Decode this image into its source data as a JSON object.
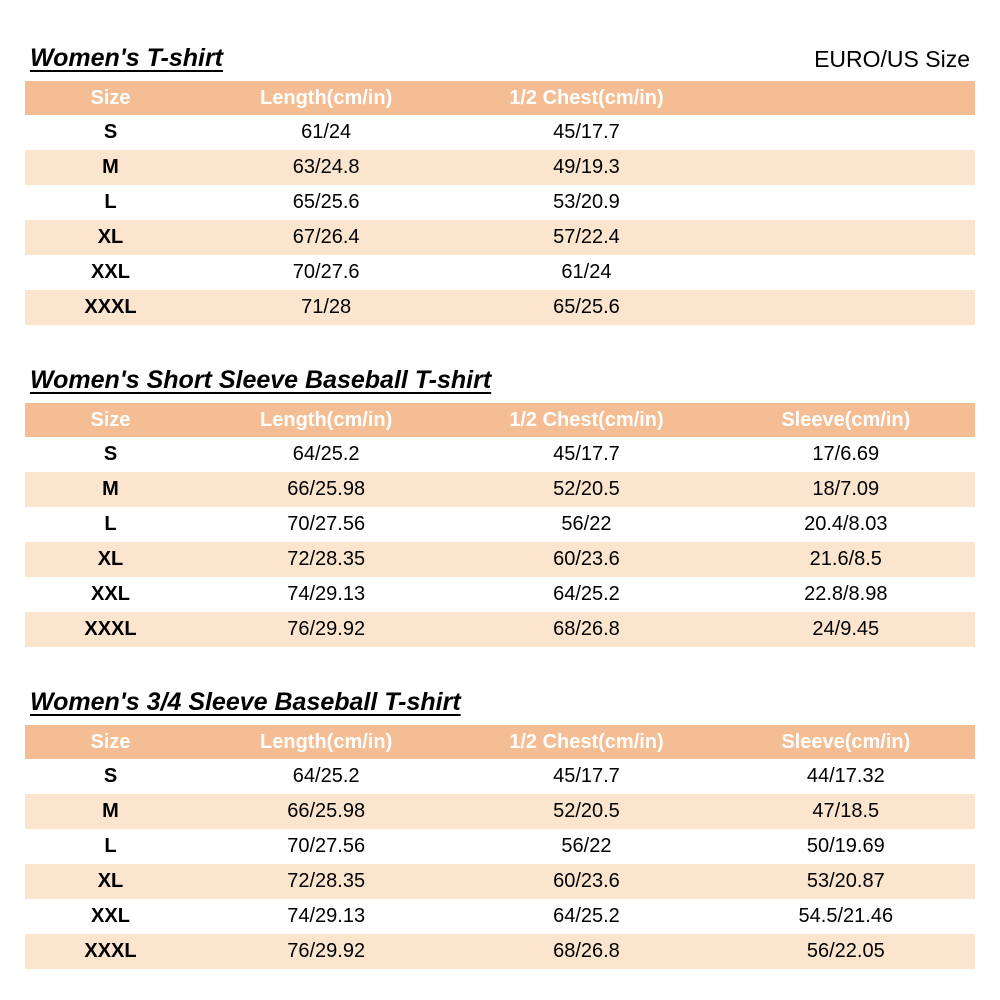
{
  "size_system_label": "EURO/US Size",
  "colors": {
    "header_bg": "#F5BD93",
    "row_alt_bg": "#FBE5CF",
    "header_text": "#FFFFFF",
    "body_text": "#000000"
  },
  "tables": [
    {
      "title": "Women's T-shirt",
      "headers": [
        "Size",
        "Length(cm/in)",
        "1/2 Chest(cm/in)",
        ""
      ],
      "rows": [
        [
          "S",
          "61/24",
          "45/17.7",
          ""
        ],
        [
          "M",
          "63/24.8",
          "49/19.3",
          ""
        ],
        [
          "L",
          "65/25.6",
          "53/20.9",
          ""
        ],
        [
          "XL",
          "67/26.4",
          "57/22.4",
          ""
        ],
        [
          "XXL",
          "70/27.6",
          "61/24",
          ""
        ],
        [
          "XXXL",
          "71/28",
          "65/25.6",
          ""
        ]
      ]
    },
    {
      "title": "Women's Short Sleeve Baseball T-shirt",
      "headers": [
        "Size",
        "Length(cm/in)",
        "1/2 Chest(cm/in)",
        "Sleeve(cm/in)"
      ],
      "rows": [
        [
          "S",
          "64/25.2",
          "45/17.7",
          "17/6.69"
        ],
        [
          "M",
          "66/25.98",
          "52/20.5",
          "18/7.09"
        ],
        [
          "L",
          "70/27.56",
          "56/22",
          "20.4/8.03"
        ],
        [
          "XL",
          "72/28.35",
          "60/23.6",
          "21.6/8.5"
        ],
        [
          "XXL",
          "74/29.13",
          "64/25.2",
          "22.8/8.98"
        ],
        [
          "XXXL",
          "76/29.92",
          "68/26.8",
          "24/9.45"
        ]
      ]
    },
    {
      "title": "Women's 3/4 Sleeve Baseball T-shirt",
      "headers": [
        "Size",
        "Length(cm/in)",
        "1/2 Chest(cm/in)",
        "Sleeve(cm/in)"
      ],
      "rows": [
        [
          "S",
          "64/25.2",
          "45/17.7",
          "44/17.32"
        ],
        [
          "M",
          "66/25.98",
          "52/20.5",
          "47/18.5"
        ],
        [
          "L",
          "70/27.56",
          "56/22",
          "50/19.69"
        ],
        [
          "XL",
          "72/28.35",
          "60/23.6",
          "53/20.87"
        ],
        [
          "XXL",
          "74/29.13",
          "64/25.2",
          "54.5/21.46"
        ],
        [
          "XXXL",
          "76/29.92",
          "68/26.8",
          "56/22.05"
        ]
      ]
    }
  ]
}
